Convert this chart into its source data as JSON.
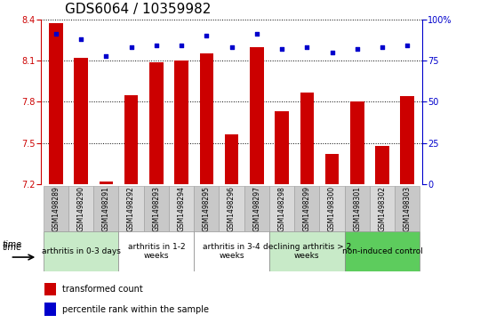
{
  "title": "GDS6064 / 10359982",
  "samples": [
    "GSM1498289",
    "GSM1498290",
    "GSM1498291",
    "GSM1498292",
    "GSM1498293",
    "GSM1498294",
    "GSM1498295",
    "GSM1498296",
    "GSM1498297",
    "GSM1498298",
    "GSM1498299",
    "GSM1498300",
    "GSM1498301",
    "GSM1498302",
    "GSM1498303"
  ],
  "bar_values": [
    8.37,
    8.12,
    7.22,
    7.85,
    8.09,
    8.1,
    8.15,
    7.56,
    8.2,
    7.73,
    7.87,
    7.42,
    7.8,
    7.48,
    7.84
  ],
  "percentile_values": [
    91,
    88,
    78,
    83,
    84,
    84,
    90,
    83,
    91,
    82,
    83,
    80,
    82,
    83,
    84
  ],
  "groups": [
    {
      "label": "arthritis in 0-3 days",
      "start": 0,
      "end": 3,
      "color": "#c8eac8"
    },
    {
      "label": "arthritis in 1-2\nweeks",
      "start": 3,
      "end": 6,
      "color": "#ffffff"
    },
    {
      "label": "arthritis in 3-4\nweeks",
      "start": 6,
      "end": 9,
      "color": "#ffffff"
    },
    {
      "label": "declining arthritis > 2\nweeks",
      "start": 9,
      "end": 12,
      "color": "#c8eac8"
    },
    {
      "label": "non-induced control",
      "start": 12,
      "end": 15,
      "color": "#5dcc5d"
    }
  ],
  "ylim_left": [
    7.2,
    8.4
  ],
  "ylim_right": [
    0,
    100
  ],
  "yticks_left": [
    7.2,
    7.5,
    7.8,
    8.1,
    8.4
  ],
  "yticks_right": [
    0,
    25,
    50,
    75,
    100
  ],
  "bar_color": "#cc0000",
  "dot_color": "#0000cc",
  "title_fontsize": 11,
  "tick_fontsize": 7,
  "sample_fontsize": 5.5,
  "group_fontsize": 6.5,
  "legend_fontsize": 7
}
